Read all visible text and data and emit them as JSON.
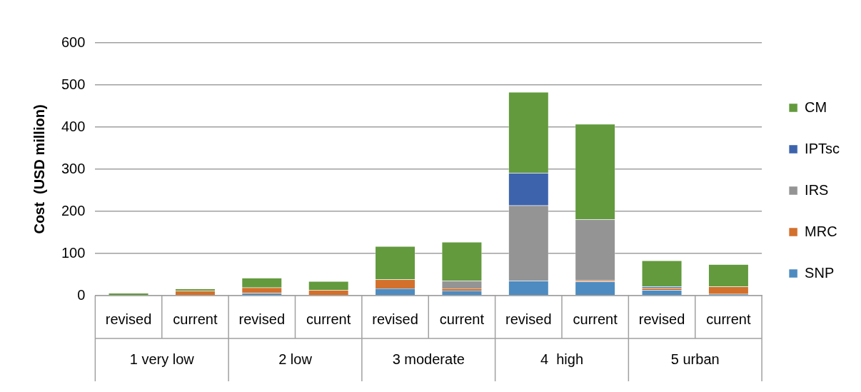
{
  "chart_data": {
    "type": "bar",
    "stacked": true,
    "ylabel": "Cost  (USD million)",
    "categories": [
      "revised",
      "current",
      "revised",
      "current",
      "revised",
      "current",
      "revised",
      "current",
      "revised",
      "current"
    ],
    "annotations": [
      "1 very low",
      "2 low",
      "3 moderate",
      "4  high",
      "5 urban"
    ],
    "series": [
      {
        "name": "SNP",
        "color": "#4e8bc0",
        "values": [
          0,
          0,
          6,
          0,
          17,
          12,
          35,
          33,
          13,
          4
        ]
      },
      {
        "name": "MRC",
        "color": "#d3702c",
        "values": [
          0,
          11,
          13,
          13,
          21,
          5,
          0,
          3,
          5,
          17
        ]
      },
      {
        "name": "IRS",
        "color": "#949494",
        "values": [
          0,
          0,
          0,
          0,
          0,
          18,
          179,
          145,
          0,
          0
        ]
      },
      {
        "name": "IPTsc",
        "color": "#3d63ad",
        "values": [
          0,
          0,
          0,
          0,
          0,
          0,
          77,
          0,
          3,
          0
        ]
      },
      {
        "name": "CM",
        "color": "#629a3d",
        "values": [
          6,
          5,
          23,
          21,
          79,
          92,
          192,
          226,
          62,
          53
        ]
      }
    ],
    "ylim": [
      0,
      600
    ],
    "yticks": [
      0,
      100,
      200,
      300,
      400,
      500,
      600
    ],
    "grid": "y",
    "legend": "right"
  }
}
